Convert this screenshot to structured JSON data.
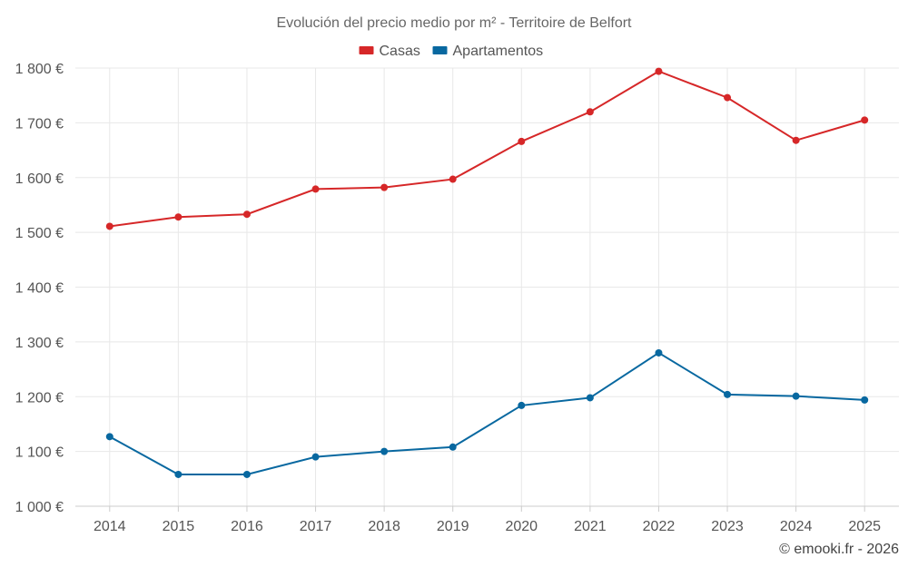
{
  "chart_data": {
    "type": "line",
    "title": "Evolución del precio medio por m² - Territoire de Belfort",
    "categories": [
      "2014",
      "2015",
      "2016",
      "2017",
      "2018",
      "2019",
      "2020",
      "2021",
      "2022",
      "2023",
      "2024",
      "2025"
    ],
    "series": [
      {
        "name": "Casas",
        "color": "#d62728",
        "values": [
          1511,
          1528,
          1533,
          1579,
          1582,
          1597,
          1666,
          1720,
          1794,
          1746,
          1668,
          1705
        ]
      },
      {
        "name": "Apartamentos",
        "color": "#0868a0",
        "values": [
          1127,
          1058,
          1058,
          1090,
          1100,
          1108,
          1184,
          1198,
          1280,
          1204,
          1201,
          1194
        ]
      }
    ],
    "ylim": [
      1000,
      1800
    ],
    "yticks": [
      1000,
      1100,
      1200,
      1300,
      1400,
      1500,
      1600,
      1700,
      1800
    ],
    "ytick_labels": [
      "1 000 €",
      "1 100 €",
      "1 200 €",
      "1 300 €",
      "1 400 €",
      "1 500 €",
      "1 600 €",
      "1 700 €",
      "1 800 €"
    ],
    "xlabel": "",
    "ylabel": "",
    "grid": true,
    "legend_position": "top-center"
  },
  "footer": "© emooki.fr - 2026"
}
